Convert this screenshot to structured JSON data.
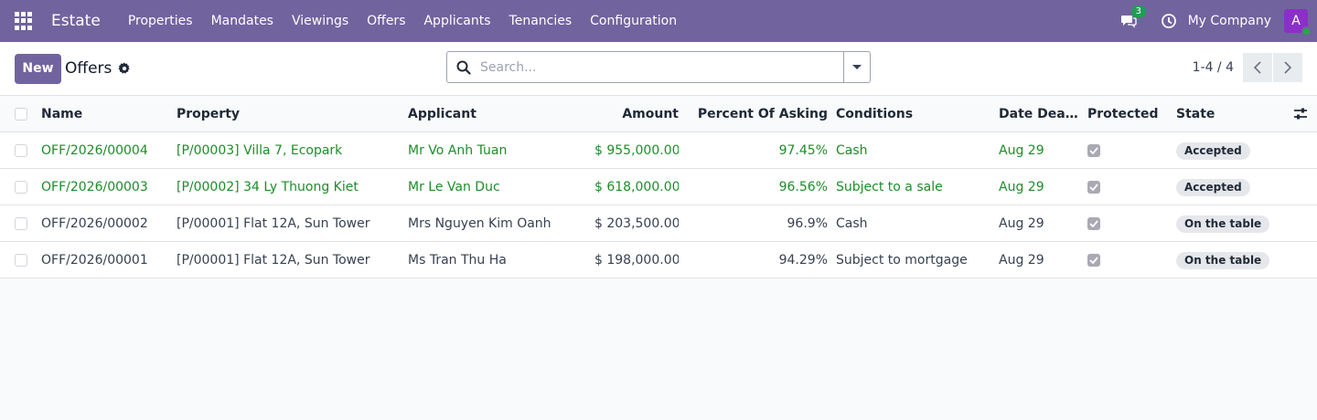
{
  "navbar": {
    "brand": "Estate",
    "menu": [
      "Properties",
      "Mandates",
      "Viewings",
      "Offers",
      "Applicants",
      "Tenancies",
      "Configuration"
    ],
    "chat_count": "3",
    "company": "My Company",
    "avatar_initial": "A",
    "color": "#71639e"
  },
  "control": {
    "new_label": "New",
    "title": "Offers",
    "search_placeholder": "Search...",
    "pager": "1-4 / 4"
  },
  "columns": {
    "name": "Name",
    "property": "Property",
    "applicant": "Applicant",
    "amount": "Amount",
    "percent": "Percent Of Asking",
    "conditions": "Conditions",
    "date": "Date Deadl...",
    "protected": "Protected",
    "state": "State"
  },
  "rows": [
    {
      "name": "OFF/2026/00004",
      "property": "[P/00003] Villa 7, Ecopark",
      "applicant": "Mr Vo Anh Tuan",
      "amount": "$ 955,000.00",
      "percent": "97.45%",
      "conditions": "Cash",
      "date": "Aug 29",
      "protected": true,
      "state": "Accepted",
      "highlight": true
    },
    {
      "name": "OFF/2026/00003",
      "property": "[P/00002] 34 Ly Thuong Kiet",
      "applicant": "Mr Le Van Duc",
      "amount": "$ 618,000.00",
      "percent": "96.56%",
      "conditions": "Subject to a sale",
      "date": "Aug 29",
      "protected": true,
      "state": "Accepted",
      "highlight": true
    },
    {
      "name": "OFF/2026/00002",
      "property": "[P/00001] Flat 12A, Sun Tower",
      "applicant": "Mrs Nguyen Kim Oanh",
      "amount": "$ 203,500.00",
      "percent": "96.9%",
      "conditions": "Cash",
      "date": "Aug 29",
      "protected": true,
      "state": "On the table",
      "highlight": false
    },
    {
      "name": "OFF/2026/00001",
      "property": "[P/00001] Flat 12A, Sun Tower",
      "applicant": "Ms Tran Thu Ha",
      "amount": "$ 198,000.00",
      "percent": "94.29%",
      "conditions": "Subject to mortgage",
      "date": "Aug 29",
      "protected": true,
      "state": "On the table",
      "highlight": false
    }
  ],
  "colors": {
    "accepted_text": "#1e8c2a",
    "default_text": "#374151"
  }
}
